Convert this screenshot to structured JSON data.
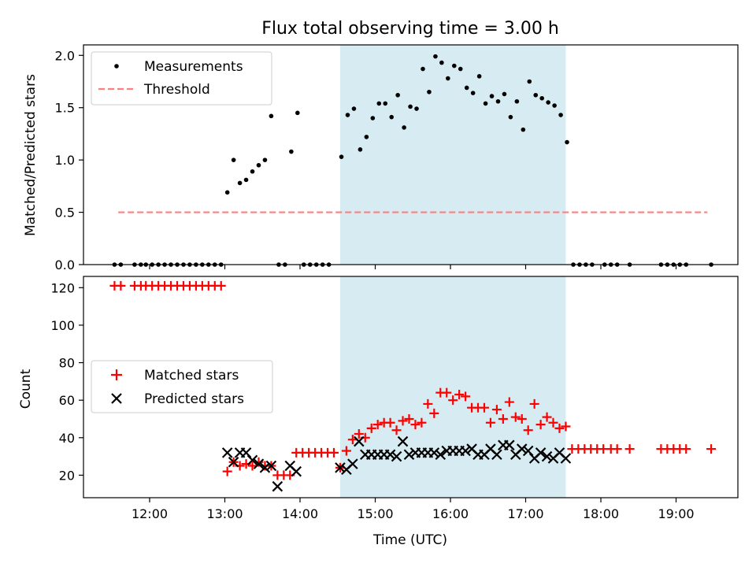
{
  "title": "Flux total observing time = 3.00 h",
  "xlabel": "Time (UTC)",
  "x_ticks": [
    "12:00",
    "13:00",
    "14:00",
    "15:00",
    "16:00",
    "17:00",
    "18:00",
    "19:00"
  ],
  "colors": {
    "measurements": "#000000",
    "threshold": "#ff7f7f",
    "matched": "#ff0000",
    "predicted": "#000000",
    "shade": "#add8e6"
  },
  "chart_data": [
    {
      "type": "scatter",
      "ylabel": "Matched/Predicted stars",
      "xlim": [
        "11:10",
        "19:50"
      ],
      "ylim": [
        0,
        2.1
      ],
      "y_ticks": [
        "0.0",
        "0.5",
        "1.0",
        "1.5",
        "2.0"
      ],
      "legend": "top-left",
      "shaded_interval": [
        "14:32",
        "17:32"
      ],
      "threshold": {
        "name": "Threshold",
        "value": 0.5,
        "x_range": [
          "11:35",
          "19:25"
        ]
      },
      "series": [
        {
          "name": "Measurements",
          "points": [
            [
              "11:32",
              0
            ],
            [
              "11:37",
              0
            ],
            [
              "11:48",
              0
            ],
            [
              "11:53",
              0
            ],
            [
              "11:57",
              0
            ],
            [
              "12:02",
              0
            ],
            [
              "12:07",
              0
            ],
            [
              "12:12",
              0
            ],
            [
              "12:17",
              0
            ],
            [
              "12:22",
              0
            ],
            [
              "12:27",
              0
            ],
            [
              "12:32",
              0
            ],
            [
              "12:37",
              0
            ],
            [
              "12:42",
              0
            ],
            [
              "12:47",
              0
            ],
            [
              "12:52",
              0
            ],
            [
              "12:57",
              0
            ],
            [
              "13:02",
              0.69
            ],
            [
              "13:07",
              1.0
            ],
            [
              "13:12",
              0.78
            ],
            [
              "13:17",
              0.81
            ],
            [
              "13:22",
              0.89
            ],
            [
              "13:27",
              0.95
            ],
            [
              "13:32",
              1.0
            ],
            [
              "13:37",
              1.42
            ],
            [
              "13:43",
              0
            ],
            [
              "13:48",
              0
            ],
            [
              "13:53",
              1.08
            ],
            [
              "13:58",
              1.45
            ],
            [
              "14:03",
              0
            ],
            [
              "14:08",
              0
            ],
            [
              "14:13",
              0
            ],
            [
              "14:18",
              0
            ],
            [
              "14:23",
              0
            ],
            [
              "14:33",
              1.03
            ],
            [
              "14:38",
              1.43
            ],
            [
              "14:43",
              1.49
            ],
            [
              "14:48",
              1.1
            ],
            [
              "14:53",
              1.22
            ],
            [
              "14:58",
              1.4
            ],
            [
              "15:03",
              1.54
            ],
            [
              "15:08",
              1.54
            ],
            [
              "15:13",
              1.41
            ],
            [
              "15:18",
              1.62
            ],
            [
              "15:23",
              1.31
            ],
            [
              "15:28",
              1.51
            ],
            [
              "15:33",
              1.49
            ],
            [
              "15:38",
              1.87
            ],
            [
              "15:43",
              1.65
            ],
            [
              "15:48",
              1.99
            ],
            [
              "15:53",
              1.93
            ],
            [
              "15:58",
              1.78
            ],
            [
              "16:03",
              1.9
            ],
            [
              "16:08",
              1.87
            ],
            [
              "16:13",
              1.69
            ],
            [
              "16:18",
              1.64
            ],
            [
              "16:23",
              1.8
            ],
            [
              "16:28",
              1.54
            ],
            [
              "16:33",
              1.61
            ],
            [
              "16:38",
              1.56
            ],
            [
              "16:43",
              1.63
            ],
            [
              "16:48",
              1.41
            ],
            [
              "16:53",
              1.56
            ],
            [
              "16:58",
              1.29
            ],
            [
              "17:03",
              1.75
            ],
            [
              "17:08",
              1.62
            ],
            [
              "17:13",
              1.59
            ],
            [
              "17:18",
              1.55
            ],
            [
              "17:23",
              1.52
            ],
            [
              "17:28",
              1.43
            ],
            [
              "17:33",
              1.17
            ],
            [
              "17:38",
              0
            ],
            [
              "17:43",
              0
            ],
            [
              "17:48",
              0
            ],
            [
              "17:53",
              0
            ],
            [
              "18:03",
              0
            ],
            [
              "18:08",
              0
            ],
            [
              "18:13",
              0
            ],
            [
              "18:23",
              0
            ],
            [
              "18:48",
              0
            ],
            [
              "18:53",
              0
            ],
            [
              "18:58",
              0
            ],
            [
              "19:03",
              0
            ],
            [
              "19:08",
              0
            ],
            [
              "19:28",
              0
            ]
          ]
        }
      ]
    },
    {
      "type": "scatter",
      "ylabel": "Count",
      "xlim": [
        "11:10",
        "19:50"
      ],
      "ylim": [
        8,
        126
      ],
      "y_ticks": [
        "20",
        "40",
        "60",
        "80",
        "100",
        "120"
      ],
      "legend": "center-left",
      "shaded_interval": [
        "14:32",
        "17:32"
      ],
      "series": [
        {
          "name": "Matched stars",
          "marker": "+",
          "points": [
            [
              "11:32",
              121
            ],
            [
              "11:37",
              121
            ],
            [
              "11:48",
              121
            ],
            [
              "11:53",
              121
            ],
            [
              "11:57",
              121
            ],
            [
              "12:02",
              121
            ],
            [
              "12:07",
              121
            ],
            [
              "12:12",
              121
            ],
            [
              "12:17",
              121
            ],
            [
              "12:22",
              121
            ],
            [
              "12:27",
              121
            ],
            [
              "12:32",
              121
            ],
            [
              "12:37",
              121
            ],
            [
              "12:42",
              121
            ],
            [
              "12:47",
              121
            ],
            [
              "12:52",
              121
            ],
            [
              "12:57",
              121
            ],
            [
              "13:02",
              22
            ],
            [
              "13:07",
              27
            ],
            [
              "13:12",
              25
            ],
            [
              "13:17",
              26
            ],
            [
              "13:22",
              25
            ],
            [
              "13:27",
              27
            ],
            [
              "13:32",
              25
            ],
            [
              "13:37",
              25
            ],
            [
              "13:42",
              20
            ],
            [
              "13:47",
              20
            ],
            [
              "13:52",
              20
            ],
            [
              "13:57",
              32
            ],
            [
              "14:02",
              32
            ],
            [
              "14:07",
              32
            ],
            [
              "14:12",
              32
            ],
            [
              "14:17",
              32
            ],
            [
              "14:22",
              32
            ],
            [
              "14:27",
              32
            ],
            [
              "14:32",
              24
            ],
            [
              "14:37",
              33
            ],
            [
              "14:42",
              39
            ],
            [
              "14:47",
              42
            ],
            [
              "14:52",
              40
            ],
            [
              "14:57",
              45
            ],
            [
              "15:02",
              47
            ],
            [
              "15:07",
              48
            ],
            [
              "15:12",
              48
            ],
            [
              "15:17",
              44
            ],
            [
              "15:22",
              49
            ],
            [
              "15:27",
              50
            ],
            [
              "15:32",
              47
            ],
            [
              "15:37",
              48
            ],
            [
              "15:42",
              58
            ],
            [
              "15:47",
              53
            ],
            [
              "15:52",
              64
            ],
            [
              "15:57",
              64
            ],
            [
              "16:02",
              60
            ],
            [
              "16:07",
              63
            ],
            [
              "16:12",
              62
            ],
            [
              "16:17",
              56
            ],
            [
              "16:22",
              56
            ],
            [
              "16:27",
              56
            ],
            [
              "16:32",
              48
            ],
            [
              "16:37",
              55
            ],
            [
              "16:42",
              50
            ],
            [
              "16:47",
              59
            ],
            [
              "16:52",
              51
            ],
            [
              "16:57",
              50
            ],
            [
              "17:02",
              44
            ],
            [
              "17:07",
              58
            ],
            [
              "17:12",
              47
            ],
            [
              "17:17",
              51
            ],
            [
              "17:22",
              48
            ],
            [
              "17:27",
              45
            ],
            [
              "17:32",
              46
            ],
            [
              "17:37",
              34
            ],
            [
              "17:42",
              34
            ],
            [
              "17:47",
              34
            ],
            [
              "17:52",
              34
            ],
            [
              "17:57",
              34
            ],
            [
              "18:02",
              34
            ],
            [
              "18:08",
              34
            ],
            [
              "18:13",
              34
            ],
            [
              "18:23",
              34
            ],
            [
              "18:48",
              34
            ],
            [
              "18:53",
              34
            ],
            [
              "18:58",
              34
            ],
            [
              "19:03",
              34
            ],
            [
              "19:08",
              34
            ],
            [
              "19:28",
              34
            ]
          ]
        },
        {
          "name": "Predicted stars",
          "marker": "x",
          "points": [
            [
              "13:02",
              32
            ],
            [
              "13:07",
              27
            ],
            [
              "13:12",
              32
            ],
            [
              "13:17",
              32
            ],
            [
              "13:22",
              28
            ],
            [
              "13:27",
              26
            ],
            [
              "13:32",
              24
            ],
            [
              "13:37",
              25
            ],
            [
              "13:42",
              14
            ],
            [
              "13:52",
              25
            ],
            [
              "13:57",
              22
            ],
            [
              "14:32",
              24
            ],
            [
              "14:37",
              23
            ],
            [
              "14:42",
              26
            ],
            [
              "14:47",
              38
            ],
            [
              "14:52",
              31
            ],
            [
              "14:57",
              31
            ],
            [
              "15:02",
              31
            ],
            [
              "15:07",
              31
            ],
            [
              "15:12",
              31
            ],
            [
              "15:17",
              30
            ],
            [
              "15:22",
              38
            ],
            [
              "15:27",
              31
            ],
            [
              "15:32",
              32
            ],
            [
              "15:37",
              32
            ],
            [
              "15:42",
              32
            ],
            [
              "15:47",
              32
            ],
            [
              "15:52",
              31
            ],
            [
              "15:57",
              33
            ],
            [
              "16:02",
              33
            ],
            [
              "16:07",
              33
            ],
            [
              "16:12",
              33
            ],
            [
              "16:17",
              34
            ],
            [
              "16:22",
              31
            ],
            [
              "16:27",
              31
            ],
            [
              "16:32",
              34
            ],
            [
              "16:37",
              31
            ],
            [
              "16:42",
              36
            ],
            [
              "16:47",
              36
            ],
            [
              "16:52",
              31
            ],
            [
              "16:57",
              34
            ],
            [
              "17:02",
              33
            ],
            [
              "17:07",
              29
            ],
            [
              "17:12",
              32
            ],
            [
              "17:17",
              30
            ],
            [
              "17:22",
              29
            ],
            [
              "17:27",
              32
            ],
            [
              "17:32",
              29
            ]
          ]
        }
      ]
    }
  ]
}
